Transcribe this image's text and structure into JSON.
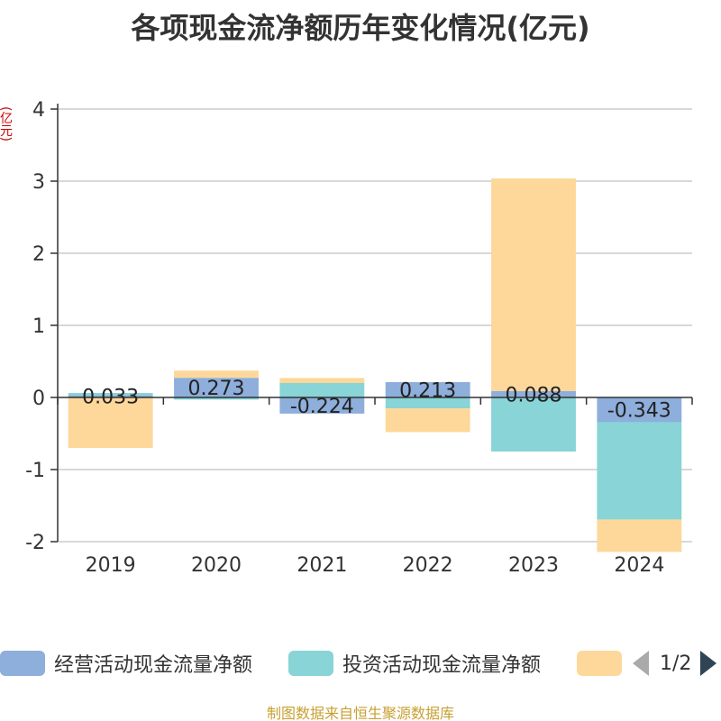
{
  "chart_data": {
    "type": "bar",
    "stacked": true,
    "title": "各项现金流净额历年变化情况(亿元)",
    "ylabel": "(亿元)",
    "categories": [
      "2019",
      "2020",
      "2021",
      "2022",
      "2023",
      "2024"
    ],
    "ylim": [
      -2,
      4
    ],
    "yticks": [
      4,
      3,
      2,
      1,
      0,
      -1,
      -2
    ],
    "grid": true,
    "legend_position": "bottom",
    "series": [
      {
        "name": "经营活动现金流量净额",
        "color": "#8eaedb",
        "values": [
          0.033,
          0.273,
          -0.224,
          0.213,
          0.088,
          -0.343
        ],
        "labels": [
          "0.033",
          "0.273",
          "-0.224",
          "0.213",
          "0.088",
          "-0.343"
        ]
      },
      {
        "name": "投资活动现金流量净额",
        "color": "#88d4d6",
        "values": [
          0.03,
          -0.03,
          0.2,
          -0.15,
          -0.75,
          -1.35
        ]
      },
      {
        "name": "",
        "color": "#fdd89a",
        "values": [
          -0.7,
          0.1,
          0.07,
          -0.33,
          2.95,
          -0.45
        ]
      }
    ]
  },
  "legend": {
    "pager": "1/2"
  },
  "footer": {
    "source": "制图数据来自恒生聚源数据库"
  }
}
